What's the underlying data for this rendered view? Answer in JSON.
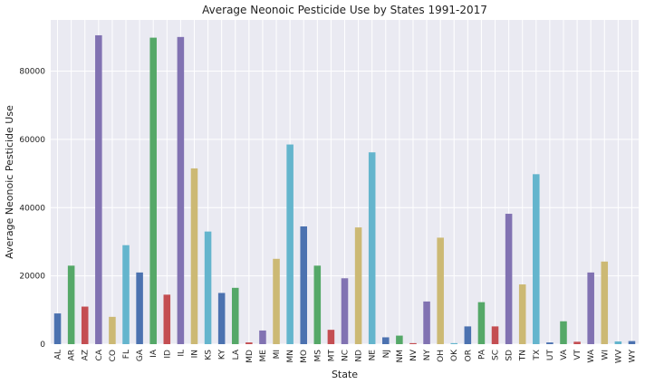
{
  "chart_data": {
    "type": "bar",
    "title": "Average Neonoic Pesticide Use by States 1991-2017",
    "xlabel": "State",
    "ylabel": "Average Neonoic Pesticide Use",
    "ylim": [
      0,
      95000
    ],
    "yticks": [
      0,
      20000,
      40000,
      60000,
      80000
    ],
    "grid": true,
    "categories": [
      "AL",
      "AR",
      "AZ",
      "CA",
      "CO",
      "FL",
      "GA",
      "IA",
      "ID",
      "IL",
      "IN",
      "KS",
      "KY",
      "LA",
      "MD",
      "ME",
      "MI",
      "MN",
      "MO",
      "MS",
      "MT",
      "NC",
      "ND",
      "NE",
      "NJ",
      "NM",
      "NV",
      "NY",
      "OH",
      "OK",
      "OR",
      "PA",
      "SC",
      "SD",
      "TN",
      "TX",
      "UT",
      "VA",
      "VT",
      "WA",
      "WI",
      "WV",
      "WY"
    ],
    "values": [
      9000,
      23000,
      11000,
      90500,
      8000,
      29000,
      21000,
      89800,
      14500,
      90000,
      51500,
      33000,
      15000,
      16500,
      500,
      4000,
      25000,
      58500,
      34500,
      23000,
      4200,
      19300,
      34200,
      56200,
      2000,
      2500,
      300,
      12500,
      31200,
      300,
      5200,
      12300,
      5200,
      38200,
      17500,
      49800,
      500,
      6700,
      700,
      21000,
      24200,
      800,
      900
    ],
    "colors": [
      "#4c72b0",
      "#55a868",
      "#c44e52",
      "#8172b2",
      "#ccb974",
      "#64b5cd"
    ],
    "background": "#eaeaf2"
  }
}
